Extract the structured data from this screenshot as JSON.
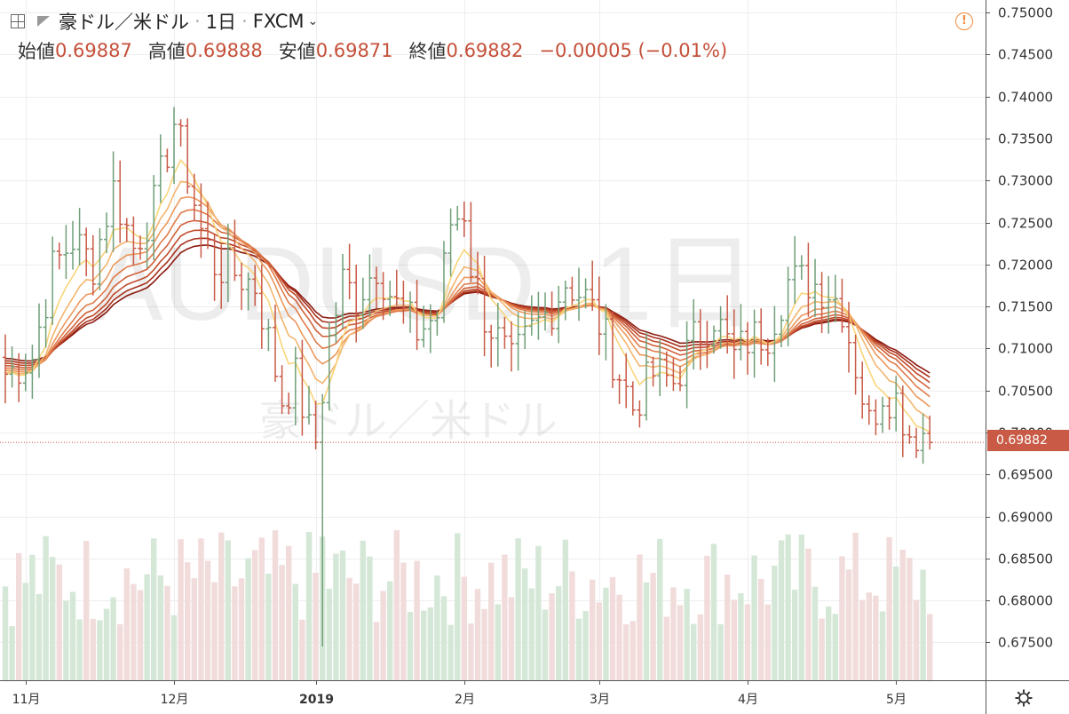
{
  "header": {
    "symbol_name": "豪ドル／米ドル",
    "interval": "1日",
    "exchange": "FXCM",
    "ohlc": [
      {
        "label": "始値",
        "value": "0.69887"
      },
      {
        "label": "高値",
        "value": "0.69888"
      },
      {
        "label": "安値",
        "value": "0.69871"
      },
      {
        "label": "終値",
        "value": "0.69882"
      }
    ],
    "change": "−0.00005 (−0.01%)"
  },
  "watermark": {
    "main": "AUDUSD, 1日",
    "sub": "豪ドル／米ドル"
  },
  "last_price_label": "0.69882",
  "colors": {
    "up": "#6f9f78",
    "down": "#c85a46",
    "vol_up": "#d5e8d7",
    "vol_down": "#f1dcdb",
    "grid": "#eeeeee",
    "ribbon": [
      "#8b1a10",
      "#a8301c",
      "#c04a2a",
      "#d0623a",
      "#e07c4a",
      "#eb985c",
      "#f3b56e",
      "#f9d57a"
    ]
  },
  "chart_data": {
    "type": "candlestick",
    "y_axis_ticks": [
      "0.75000",
      "0.74500",
      "0.74000",
      "0.73500",
      "0.73000",
      "0.72500",
      "0.72000",
      "0.71500",
      "0.71000",
      "0.70500",
      "0.70000",
      "0.69500",
      "0.69000",
      "0.68500",
      "0.68000",
      "0.67500"
    ],
    "ylim": [
      0.6705,
      0.7515
    ],
    "x_axis_labels": [
      {
        "label": "11月",
        "index": 3
      },
      {
        "label": "12月",
        "index": 25
      },
      {
        "label": "2019",
        "index": 46
      },
      {
        "label": "2月",
        "index": 68
      },
      {
        "label": "3月",
        "index": 88
      },
      {
        "label": "4月",
        "index": 110
      },
      {
        "label": "5月",
        "index": 132
      }
    ],
    "last_price": 0.69882,
    "close_anchors": [
      [
        0,
        0.707
      ],
      [
        4,
        0.709
      ],
      [
        7,
        0.7195
      ],
      [
        10,
        0.723
      ],
      [
        13,
        0.72
      ],
      [
        16,
        0.729
      ],
      [
        19,
        0.722
      ],
      [
        22,
        0.727
      ],
      [
        25,
        0.737
      ],
      [
        27,
        0.731
      ],
      [
        29,
        0.724
      ],
      [
        31,
        0.72
      ],
      [
        34,
        0.719
      ],
      [
        37,
        0.7175
      ],
      [
        39,
        0.711
      ],
      [
        41,
        0.704
      ],
      [
        43,
        0.7065
      ],
      [
        45,
        0.7
      ],
      [
        46,
        0.699
      ],
      [
        48,
        0.711
      ],
      [
        50,
        0.718
      ],
      [
        52,
        0.716
      ],
      [
        55,
        0.72
      ],
      [
        58,
        0.715
      ],
      [
        61,
        0.712
      ],
      [
        64,
        0.714
      ],
      [
        66,
        0.725
      ],
      [
        68,
        0.7265
      ],
      [
        69,
        0.72
      ],
      [
        71,
        0.714
      ],
      [
        73,
        0.711
      ],
      [
        75,
        0.708
      ],
      [
        78,
        0.712
      ],
      [
        81,
        0.715
      ],
      [
        83,
        0.718
      ],
      [
        86,
        0.716
      ],
      [
        88,
        0.713
      ],
      [
        90,
        0.709
      ],
      [
        93,
        0.703
      ],
      [
        96,
        0.707
      ],
      [
        99,
        0.706
      ],
      [
        102,
        0.711
      ],
      [
        105,
        0.714
      ],
      [
        108,
        0.709
      ],
      [
        110,
        0.711
      ],
      [
        113,
        0.712
      ],
      [
        116,
        0.718
      ],
      [
        119,
        0.718
      ],
      [
        122,
        0.717
      ],
      [
        124,
        0.715
      ],
      [
        126,
        0.708
      ],
      [
        128,
        0.701
      ],
      [
        130,
        0.705
      ],
      [
        132,
        0.704
      ],
      [
        134,
        0.7
      ],
      [
        136,
        0.7
      ],
      [
        137,
        0.69882
      ]
    ]
  }
}
